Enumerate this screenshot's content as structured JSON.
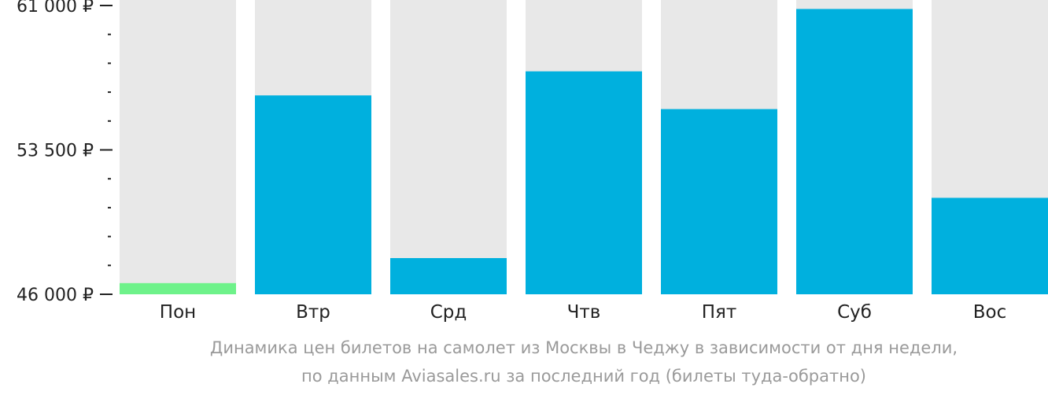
{
  "chart_data": {
    "type": "bar",
    "categories": [
      "Пон",
      "Втр",
      "Срд",
      "Чтв",
      "Пят",
      "Суб",
      "Вос"
    ],
    "values": [
      46580,
      56330,
      47880,
      57580,
      55620,
      60820,
      51010
    ],
    "ylim": [
      46000,
      61000
    ],
    "y_ticks": [
      {
        "value": 61000,
        "label": "61 000 ₽"
      },
      {
        "value": 53500,
        "label": "53 500 ₽"
      },
      {
        "value": 46000,
        "label": "46 000 ₽"
      }
    ],
    "minor_tick_step": 1500,
    "grid": false,
    "legend": "none",
    "colors": {
      "bar": "#00b0de",
      "lowest_bar": "#6ef28a",
      "background_column": "#e8e8e8",
      "axis": "#222222"
    },
    "caption_lines": [
      "Динамика цен билетов на самолет из Москвы в Чеджу в зависимости от дня недели,",
      "по данным Aviasales.ru за последний год (билеты туда-обратно)"
    ]
  }
}
